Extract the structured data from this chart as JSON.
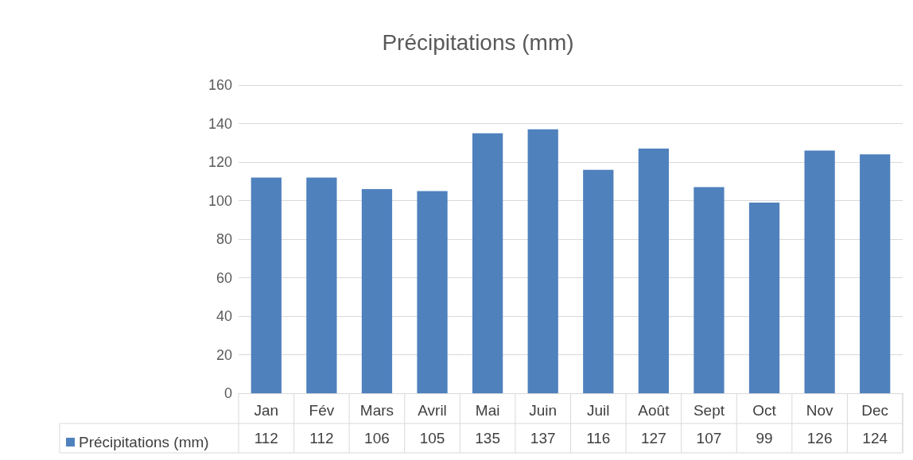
{
  "chart_data": {
    "type": "bar",
    "title": "Précipitations (mm)",
    "categories": [
      "Jan",
      "Fév",
      "Mars",
      "Avril",
      "Mai",
      "Juin",
      "Juil",
      "Août",
      "Sept",
      "Oct",
      "Nov",
      "Dec"
    ],
    "series": [
      {
        "name": "Précipitations (mm)",
        "color": "#4f81bd",
        "values": [
          112,
          112,
          106,
          105,
          135,
          137,
          116,
          127,
          107,
          99,
          126,
          124
        ]
      }
    ],
    "ylim": [
      0,
      160
    ],
    "yticks": [
      0,
      20,
      40,
      60,
      80,
      100,
      120,
      140,
      160
    ],
    "grid": "y",
    "legend": "bottom",
    "data_labels": true
  }
}
